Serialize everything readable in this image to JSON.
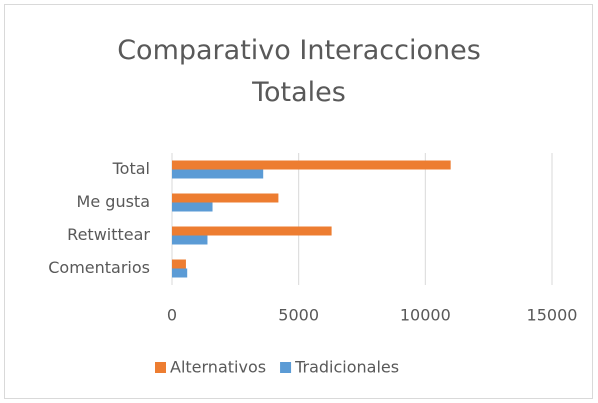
{
  "chart_data": {
    "type": "hbar",
    "title": "Comparativo Interacciones Totales",
    "categories": [
      "Total",
      "Me gusta",
      "Retwittear",
      "Comentarios"
    ],
    "series": [
      {
        "name": "Alternativos",
        "color": "#ed7d31",
        "values": [
          11000,
          4200,
          6300,
          550
        ]
      },
      {
        "name": "Tradicionales",
        "color": "#5b9bd5",
        "values": [
          3600,
          1600,
          1400,
          600
        ]
      }
    ],
    "xlim": [
      0,
      15000
    ],
    "xticks": [
      0,
      5000,
      10000,
      15000
    ],
    "grid": true,
    "legend": "bottom"
  }
}
